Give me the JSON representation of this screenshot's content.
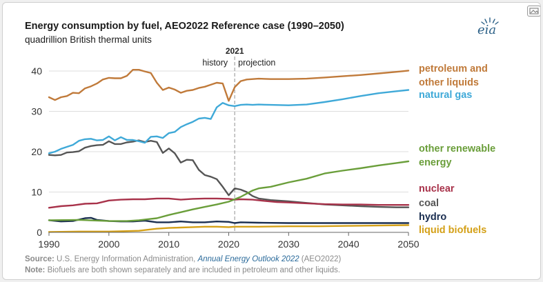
{
  "title": "Energy consumption by fuel, AEO2022 Reference case (1990–2050)",
  "subtitle": "quadrillion British thermal units",
  "logo_text": "eia",
  "source": {
    "label": "Source:",
    "text": " U.S. Energy Information Administration, ",
    "publication": "Annual Energy Outlook 2022",
    "suffix": " (AEO2022)"
  },
  "note": {
    "label": "Note:",
    "text": " Biofuels are both shown separately and are included in petroleum and other liquids."
  },
  "colors": {
    "petroleum": "#c07a3a",
    "natural_gas": "#3fa9d8",
    "renewable": "#6a9e3a",
    "nuclear": "#a8324a",
    "coal": "#555555",
    "hydro": "#1a2e50",
    "biofuels": "#d4a017",
    "axis_text": "#333333",
    "gridline": "#dddddd",
    "divider": "#aaaaaa"
  },
  "chart_data": {
    "type": "line",
    "x_ticks": [
      1990,
      2000,
      2010,
      2020,
      2030,
      2040,
      2050
    ],
    "y_ticks": [
      0,
      10,
      20,
      30,
      40
    ],
    "xlim": [
      1990,
      2050
    ],
    "ylim": [
      0,
      42
    ],
    "grid": "horizontal",
    "legend": "right, inline labels",
    "divider": {
      "year": 2021,
      "label": "2021",
      "left_label": "history",
      "right_label": "projection"
    },
    "series": [
      {
        "key": "petroleum",
        "name": [
          "petroleum and",
          "other liquids"
        ],
        "x": [
          1990,
          1991,
          1992,
          1993,
          1994,
          1995,
          1996,
          1997,
          1998,
          1999,
          2000,
          2001,
          2002,
          2003,
          2004,
          2005,
          2006,
          2007,
          2008,
          2009,
          2010,
          2011,
          2012,
          2013,
          2014,
          2015,
          2016,
          2017,
          2018,
          2019,
          2020,
          2021,
          2022,
          2023,
          2024,
          2025,
          2027,
          2030,
          2033,
          2036,
          2039,
          2042,
          2045,
          2048,
          2050
        ],
        "y": [
          33.5,
          32.8,
          33.5,
          33.8,
          34.6,
          34.5,
          35.7,
          36.2,
          36.9,
          37.9,
          38.3,
          38.2,
          38.2,
          38.8,
          40.3,
          40.3,
          39.9,
          39.5,
          37.1,
          35.3,
          35.9,
          35.4,
          34.6,
          35.1,
          35.3,
          35.8,
          36.1,
          36.6,
          37.1,
          36.9,
          32.6,
          36.0,
          37.5,
          37.9,
          38.0,
          38.1,
          38.0,
          38.0,
          38.1,
          38.4,
          38.7,
          39.0,
          39.4,
          39.8,
          40.1
        ]
      },
      {
        "key": "natural_gas",
        "name": [
          "natural gas"
        ],
        "x": [
          1990,
          1991,
          1992,
          1993,
          1994,
          1995,
          1996,
          1997,
          1998,
          1999,
          2000,
          2001,
          2002,
          2003,
          2004,
          2005,
          2006,
          2007,
          2008,
          2009,
          2010,
          2011,
          2012,
          2013,
          2014,
          2015,
          2016,
          2017,
          2018,
          2019,
          2020,
          2021,
          2022,
          2023,
          2024,
          2025,
          2027,
          2030,
          2033,
          2036,
          2039,
          2042,
          2045,
          2048,
          2050
        ],
        "y": [
          19.6,
          20.0,
          20.7,
          21.2,
          21.7,
          22.7,
          23.1,
          23.2,
          22.8,
          22.9,
          23.8,
          22.8,
          23.6,
          22.9,
          22.9,
          22.6,
          22.2,
          23.7,
          23.8,
          23.4,
          24.6,
          24.9,
          26.1,
          26.8,
          27.4,
          28.2,
          28.4,
          28.1,
          31.0,
          32.1,
          31.5,
          31.3,
          31.6,
          31.7,
          31.6,
          31.7,
          31.6,
          31.5,
          31.7,
          32.3,
          33.0,
          33.8,
          34.5,
          35.0,
          35.3
        ]
      },
      {
        "key": "renewable",
        "name": [
          "other renewable",
          "energy"
        ],
        "x": [
          1990,
          1995,
          2000,
          2003,
          2005,
          2008,
          2010,
          2012,
          2014,
          2016,
          2018,
          2020,
          2021,
          2022,
          2023,
          2024,
          2025,
          2027,
          2030,
          2033,
          2036,
          2039,
          2042,
          2045,
          2048,
          2050
        ],
        "y": [
          3.0,
          3.1,
          2.8,
          2.8,
          3.0,
          3.5,
          4.3,
          5.0,
          5.7,
          6.3,
          6.9,
          7.6,
          8.2,
          8.8,
          9.6,
          10.4,
          10.9,
          11.3,
          12.4,
          13.3,
          14.6,
          15.3,
          15.9,
          16.6,
          17.2,
          17.6
        ]
      },
      {
        "key": "nuclear",
        "name": [
          "nuclear"
        ],
        "x": [
          1990,
          1992,
          1994,
          1996,
          1998,
          2000,
          2002,
          2004,
          2006,
          2008,
          2010,
          2012,
          2014,
          2016,
          2018,
          2020,
          2021,
          2022,
          2024,
          2026,
          2028,
          2030,
          2033,
          2036,
          2039,
          2042,
          2045,
          2048,
          2050
        ],
        "y": [
          6.1,
          6.5,
          6.7,
          7.1,
          7.2,
          7.9,
          8.1,
          8.2,
          8.2,
          8.4,
          8.4,
          8.1,
          8.3,
          8.4,
          8.4,
          8.3,
          8.1,
          8.2,
          8.1,
          7.8,
          7.5,
          7.4,
          7.2,
          7.0,
          6.9,
          6.9,
          6.8,
          6.8,
          6.8
        ]
      },
      {
        "key": "coal",
        "name": [
          "coal"
        ],
        "x": [
          1990,
          1991,
          1992,
          1993,
          1994,
          1995,
          1996,
          1997,
          1998,
          1999,
          2000,
          2001,
          2002,
          2003,
          2004,
          2005,
          2006,
          2007,
          2008,
          2009,
          2010,
          2011,
          2012,
          2013,
          2014,
          2015,
          2016,
          2017,
          2018,
          2019,
          2020,
          2021,
          2022,
          2023,
          2024,
          2025,
          2027,
          2030,
          2033,
          2036,
          2039,
          2042,
          2045,
          2048,
          2050
        ],
        "y": [
          19.2,
          19.1,
          19.2,
          19.8,
          19.9,
          20.1,
          21.0,
          21.4,
          21.6,
          21.7,
          22.6,
          21.9,
          21.9,
          22.3,
          22.5,
          22.8,
          22.4,
          22.7,
          22.4,
          19.7,
          20.8,
          19.6,
          17.3,
          18.0,
          17.9,
          15.5,
          14.2,
          13.8,
          13.2,
          11.3,
          9.2,
          10.9,
          10.6,
          10.0,
          9.0,
          8.4,
          8.0,
          7.7,
          7.3,
          6.9,
          6.7,
          6.5,
          6.3,
          6.2,
          6.2
        ]
      },
      {
        "key": "hydro",
        "name": [
          "hydro"
        ],
        "x": [
          1990,
          1992,
          1994,
          1996,
          1997,
          1998,
          2000,
          2002,
          2004,
          2006,
          2008,
          2010,
          2012,
          2014,
          2016,
          2018,
          2020,
          2021,
          2022,
          2025,
          2030,
          2035,
          2040,
          2045,
          2050
        ],
        "y": [
          3.0,
          2.7,
          2.8,
          3.5,
          3.6,
          3.1,
          2.8,
          2.7,
          2.7,
          2.9,
          2.5,
          2.5,
          2.7,
          2.5,
          2.5,
          2.7,
          2.6,
          2.3,
          2.5,
          2.4,
          2.3,
          2.3,
          2.3,
          2.3,
          2.3
        ]
      },
      {
        "key": "biofuels",
        "name": [
          "liquid biofuels"
        ],
        "x": [
          1990,
          1995,
          2000,
          2003,
          2005,
          2008,
          2010,
          2012,
          2014,
          2016,
          2018,
          2020,
          2021,
          2025,
          2030,
          2035,
          2040,
          2045,
          2050
        ],
        "y": [
          0.1,
          0.2,
          0.2,
          0.3,
          0.4,
          0.9,
          1.1,
          1.2,
          1.3,
          1.4,
          1.4,
          1.3,
          1.4,
          1.4,
          1.5,
          1.5,
          1.6,
          1.7,
          1.8
        ]
      }
    ]
  }
}
